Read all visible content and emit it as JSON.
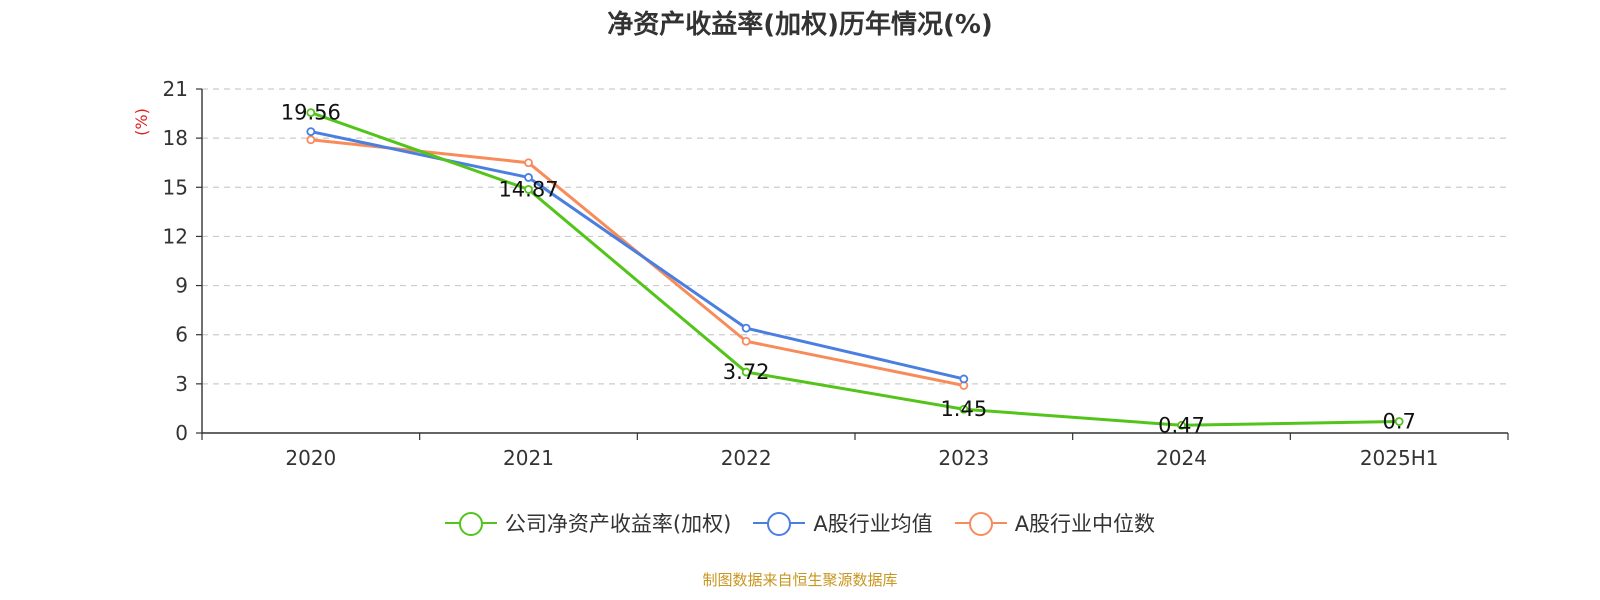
{
  "chart_data": {
    "type": "line",
    "title": "净资产收益率(加权)历年情况(%)",
    "ylabel": "(%)",
    "xlabel": "",
    "categories": [
      "2020",
      "2021",
      "2022",
      "2023",
      "2024",
      "2025H1"
    ],
    "yticks": [
      0,
      3,
      6,
      9,
      12,
      15,
      18,
      21
    ],
    "ylim": [
      0,
      21
    ],
    "grid": "horizontal dashed",
    "legend_position": "bottom-center",
    "series": [
      {
        "name": "公司净资产收益率(加权)",
        "color": "#52c41a",
        "values": [
          19.56,
          14.87,
          3.72,
          1.45,
          0.47,
          0.7
        ],
        "labels": [
          "19.56",
          "14.87",
          "3.72",
          "1.45",
          "0.47",
          "0.7"
        ]
      },
      {
        "name": "A股行业均值",
        "color": "#4a7fe0",
        "values": [
          18.4,
          15.6,
          6.4,
          3.3,
          null,
          null
        ]
      },
      {
        "name": "A股行业中位数",
        "color": "#f78c5a",
        "values": [
          17.9,
          16.5,
          5.6,
          2.9,
          null,
          null
        ]
      }
    ]
  },
  "footer": {
    "source": "制图数据来自恒生聚源数据库"
  }
}
